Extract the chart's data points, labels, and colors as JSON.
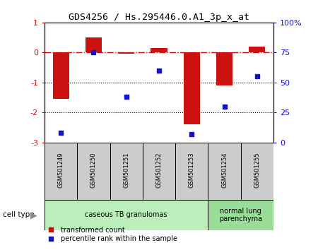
{
  "title": "GDS4256 / Hs.295446.0.A1_3p_x_at",
  "samples": [
    "GSM501249",
    "GSM501250",
    "GSM501251",
    "GSM501252",
    "GSM501253",
    "GSM501254",
    "GSM501255"
  ],
  "transformed_count": [
    -1.55,
    0.5,
    -0.05,
    0.15,
    -2.4,
    -1.1,
    0.2
  ],
  "percentile_rank": [
    8,
    75,
    38,
    60,
    7,
    30,
    55
  ],
  "ylim_left": [
    -3,
    1
  ],
  "ylim_right": [
    0,
    100
  ],
  "yticks_left": [
    -3,
    -2,
    -1,
    0,
    1
  ],
  "yticks_right": [
    0,
    25,
    50,
    75,
    100
  ],
  "ytick_labels_right": [
    "0",
    "25",
    "50",
    "75",
    "100%"
  ],
  "dotted_lines": [
    -1,
    -2
  ],
  "bar_color": "#cc1111",
  "dot_color": "#1111cc",
  "dashed_line_color": "#cc1111",
  "cell_type_groups": [
    {
      "label": "caseous TB granulomas",
      "samples": [
        0,
        1,
        2,
        3,
        4
      ],
      "color": "#bbeebb"
    },
    {
      "label": "normal lung\nparenchyma",
      "samples": [
        5,
        6
      ],
      "color": "#99dd99"
    }
  ],
  "legend_bar_label": "transformed count",
  "legend_dot_label": "percentile rank within the sample",
  "cell_type_label": "cell type",
  "bar_width": 0.5,
  "tick_label_color_left": "#cc1111",
  "tick_label_color_right": "#1111cc",
  "sample_box_color": "#cccccc",
  "fig_bg": "#ffffff"
}
